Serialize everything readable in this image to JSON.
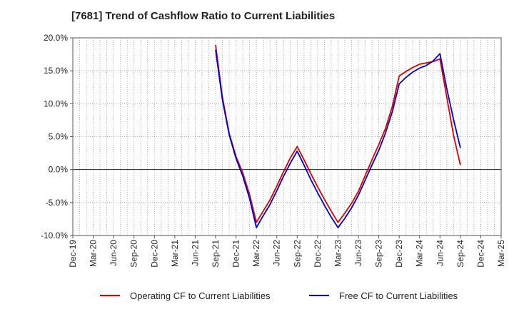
{
  "chart_data": {
    "type": "line",
    "title": "[7681]  Trend of Cashflow Ratio to Current Liabilities",
    "xlabel": "",
    "ylabel": "",
    "categories": [
      "Dec-19",
      "Mar-20",
      "Jun-20",
      "Sep-20",
      "Dec-20",
      "Mar-21",
      "Jun-21",
      "Sep-21",
      "Dec-21",
      "Mar-22",
      "Jun-22",
      "Sep-22",
      "Dec-22",
      "Mar-23",
      "Jun-23",
      "Sep-23",
      "Dec-23",
      "Mar-24",
      "Jun-24",
      "Sep-24",
      "Dec-24",
      "Mar-25"
    ],
    "ylim": [
      -10,
      20
    ],
    "yticks": [
      20,
      15,
      10,
      5,
      0,
      -5,
      -10
    ],
    "ytick_labels": [
      "20.0%",
      "15.0%",
      "10.0%",
      "5.0%",
      "0.0%",
      "-5.0%",
      "-10.0%"
    ],
    "grid": true,
    "legend_position": "bottom",
    "series": [
      {
        "name": "Operating CF to Current Liabilities",
        "color": "#e00000",
        "points": [
          [
            "Sep-21",
            18.9
          ],
          [
            "Oct-21",
            11.0
          ],
          [
            "Nov-21",
            5.5
          ],
          [
            "Dec-21",
            2.0
          ],
          [
            "Jan-22",
            -0.5
          ],
          [
            "Feb-22",
            -3.8
          ],
          [
            "Mar-22",
            -8.0
          ],
          [
            "Apr-22",
            -6.3
          ],
          [
            "May-22",
            -4.6
          ],
          [
            "Jun-22",
            -2.5
          ],
          [
            "Jul-22",
            -0.3
          ],
          [
            "Aug-22",
            1.8
          ],
          [
            "Sep-22",
            3.5
          ],
          [
            "Oct-22",
            1.5
          ],
          [
            "Nov-22",
            -0.6
          ],
          [
            "Dec-22",
            -2.6
          ],
          [
            "Jan-23",
            -4.5
          ],
          [
            "Feb-23",
            -6.3
          ],
          [
            "Mar-23",
            -8.0
          ],
          [
            "Apr-23",
            -6.6
          ],
          [
            "May-23",
            -5.1
          ],
          [
            "Jun-23",
            -3.3
          ],
          [
            "Jul-23",
            -0.9
          ],
          [
            "Aug-23",
            1.5
          ],
          [
            "Sep-23",
            3.8
          ],
          [
            "Oct-23",
            6.3
          ],
          [
            "Nov-23",
            9.6
          ],
          [
            "Dec-23",
            14.2
          ],
          [
            "Jan-24",
            14.9
          ],
          [
            "Feb-24",
            15.5
          ],
          [
            "Mar-24",
            16.0
          ],
          [
            "Apr-24",
            16.2
          ],
          [
            "May-24",
            16.4
          ],
          [
            "Jun-24",
            16.8
          ],
          [
            "Jul-24",
            11.0
          ],
          [
            "Aug-24",
            5.2
          ],
          [
            "Sep-24",
            0.7
          ]
        ]
      },
      {
        "name": "Free CF to Current Liabilities",
        "color": "#0000d0",
        "points": [
          [
            "Sep-21",
            18.2
          ],
          [
            "Oct-21",
            10.6
          ],
          [
            "Nov-21",
            5.3
          ],
          [
            "Dec-21",
            1.7
          ],
          [
            "Jan-22",
            -1.0
          ],
          [
            "Feb-22",
            -4.4
          ],
          [
            "Mar-22",
            -8.8
          ],
          [
            "Apr-22",
            -7.0
          ],
          [
            "May-22",
            -5.3
          ],
          [
            "Jun-22",
            -3.2
          ],
          [
            "Jul-22",
            -1.0
          ],
          [
            "Aug-22",
            1.0
          ],
          [
            "Sep-22",
            2.8
          ],
          [
            "Oct-22",
            0.7
          ],
          [
            "Nov-22",
            -1.5
          ],
          [
            "Dec-22",
            -3.5
          ],
          [
            "Jan-23",
            -5.4
          ],
          [
            "Feb-23",
            -7.2
          ],
          [
            "Mar-23",
            -8.8
          ],
          [
            "Apr-23",
            -7.4
          ],
          [
            "May-23",
            -5.8
          ],
          [
            "Jun-23",
            -3.9
          ],
          [
            "Jul-23",
            -1.6
          ],
          [
            "Aug-23",
            0.7
          ],
          [
            "Sep-23",
            2.9
          ],
          [
            "Oct-23",
            5.6
          ],
          [
            "Nov-23",
            8.8
          ],
          [
            "Dec-23",
            13.0
          ],
          [
            "Jan-24",
            14.0
          ],
          [
            "Feb-24",
            14.8
          ],
          [
            "Mar-24",
            15.4
          ],
          [
            "Apr-24",
            15.8
          ],
          [
            "May-24",
            16.5
          ],
          [
            "Jun-24",
            17.6
          ],
          [
            "Jul-24",
            12.3
          ],
          [
            "Aug-24",
            7.6
          ],
          [
            "Sep-24",
            3.3
          ]
        ]
      }
    ]
  }
}
